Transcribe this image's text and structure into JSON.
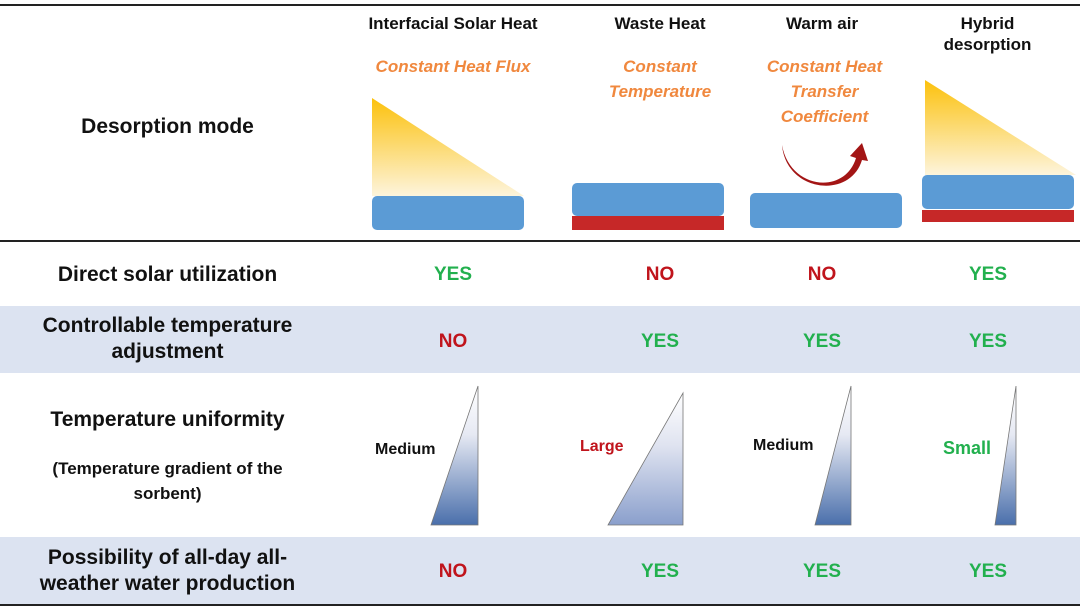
{
  "header": {
    "row_label": "Desorption mode",
    "columns": [
      {
        "title": "Interfacial Solar Heat",
        "mode": "Constant Heat Flux"
      },
      {
        "title": "Waste Heat",
        "mode": "Constant Temperature"
      },
      {
        "title": "Warm air",
        "mode": "Constant Heat Transfer Coefficient"
      },
      {
        "title": "Hybrid desorption",
        "mode": ""
      }
    ]
  },
  "rows": [
    {
      "label": "Direct solar utilization",
      "values": [
        "YES",
        "NO",
        "NO",
        "YES"
      ]
    },
    {
      "label": "Controllable temperature adjustment",
      "values": [
        "NO",
        "YES",
        "YES",
        "YES"
      ]
    },
    {
      "label": "Temperature uniformity",
      "sublabel": "(Temperature gradient of the sorbent)",
      "values": [
        "Medium",
        "Large",
        "Medium",
        "Small"
      ]
    },
    {
      "label": "Possibility of all-day all-weather water production",
      "values": [
        "NO",
        "YES",
        "YES",
        "YES"
      ]
    }
  ],
  "colors": {
    "yes": "#22b04e",
    "no": "#c0141c",
    "band": "#dce3f1",
    "mode_text": "#f0883e",
    "sorbent": "#5b9bd5",
    "heater": "#c62828"
  }
}
